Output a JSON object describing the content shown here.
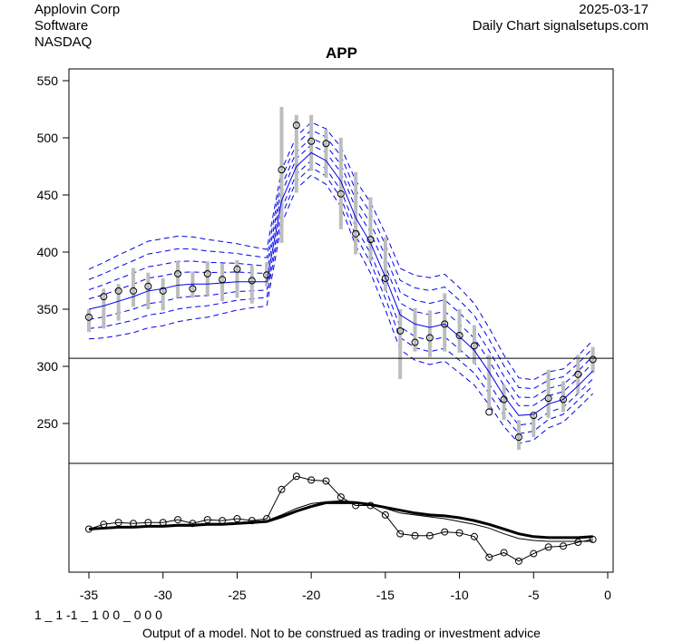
{
  "header": {
    "company": "Applovin Corp",
    "sector": "Software",
    "exchange": "NASDAQ",
    "date": "2025-03-17",
    "source": "Daily Chart signalsetups.com"
  },
  "footer": {
    "code": "1 _ 1 -1 _ 1 0 0 _ 0 0 0",
    "disclaimer": "Output of a model. Not to be construed as trading or investment advice"
  },
  "chart_data": [
    {
      "type": "line",
      "panel": "price",
      "title": "APP",
      "xlabel": "",
      "ylabel": "",
      "xlim": [
        -36.3,
        0.4
      ],
      "ylim": [
        212,
        560
      ],
      "x_ticks": [
        -35,
        -30,
        -25,
        -20,
        -15,
        -10,
        -5,
        0
      ],
      "y_ticks": [
        250,
        300,
        350,
        400,
        450,
        500,
        550
      ],
      "grid": false,
      "reference_line": 307,
      "x": [
        -35,
        -34,
        -33,
        -32,
        -31,
        -30,
        -29,
        -28,
        -27,
        -26,
        -25,
        -24,
        -23,
        -22,
        -21,
        -20,
        -19,
        -18,
        -17,
        -16,
        -15,
        -14,
        -13,
        -12,
        -11,
        -10,
        -9,
        -8,
        -7,
        -6,
        -5,
        -4,
        -3,
        -2,
        -1
      ],
      "close": [
        343,
        361,
        366,
        366,
        370,
        366,
        381,
        368,
        381,
        376,
        385,
        375,
        380,
        472,
        511,
        497,
        495,
        451,
        416,
        411,
        377,
        331,
        321,
        325,
        337,
        327,
        318,
        260,
        271,
        238,
        257,
        272,
        271,
        293,
        306
      ],
      "high": [
        350,
        368,
        372,
        386,
        382,
        377,
        392,
        383,
        392,
        390,
        393,
        388,
        391,
        527,
        520,
        520,
        507,
        500,
        470,
        448,
        413,
        350,
        351,
        349,
        364,
        350,
        336,
        310,
        284,
        253,
        258,
        297,
        287,
        310,
        317
      ],
      "low": [
        330,
        333,
        340,
        352,
        350,
        349,
        360,
        360,
        362,
        357,
        360,
        355,
        370,
        408,
        452,
        471,
        465,
        420,
        398,
        392,
        366,
        289,
        313,
        308,
        313,
        312,
        302,
        262,
        253,
        227,
        238,
        255,
        260,
        276,
        294
      ],
      "center_line": [
        350,
        353,
        357,
        361,
        366,
        368,
        371,
        372,
        372,
        373,
        374,
        374,
        374,
        445,
        475,
        487,
        480,
        462,
        430,
        408,
        378,
        345,
        337,
        334,
        337,
        326,
        314,
        295,
        274,
        257,
        258,
        267,
        271,
        283,
        296
      ],
      "band_offsets": [
        -26,
        -17,
        -9,
        9,
        17,
        26,
        35
      ],
      "series": [
        {
          "name": "Range (high-low)",
          "style": "gray vertical bars"
        },
        {
          "name": "Close",
          "style": "open circles"
        },
        {
          "name": "Center",
          "style": "solid blue line"
        },
        {
          "name": "Bands",
          "style": "dashed blue lines"
        }
      ]
    },
    {
      "type": "line",
      "panel": "indicator",
      "xlim": [
        -36.3,
        0.4
      ],
      "ylim": [
        0,
        100
      ],
      "x_ticks": [
        -35,
        -30,
        -25,
        -20,
        -15,
        -10,
        -5,
        0
      ],
      "y_ticks": [],
      "x": [
        -35,
        -34,
        -33,
        -32,
        -31,
        -30,
        -29,
        -28,
        -27,
        -26,
        -25,
        -24,
        -23,
        -22,
        -21,
        -20,
        -19,
        -18,
        -17,
        -16,
        -15,
        -14,
        -13,
        -12,
        -11,
        -10,
        -9,
        -8,
        -7,
        -6,
        -5,
        -4,
        -3,
        -2,
        -1
      ],
      "series": [
        {
          "name": "Close (normalized)",
          "style": "thin line with circles",
          "values": [
            38,
            43,
            45,
            44,
            45,
            45,
            48,
            44,
            48,
            47,
            49,
            47,
            49,
            80,
            94,
            90,
            89,
            72,
            63,
            63,
            53,
            33,
            31,
            31,
            35,
            34,
            30,
            8,
            13,
            4,
            12,
            19,
            20,
            24,
            27
          ]
        },
        {
          "name": "Slow average",
          "style": "thin line",
          "values": [
            38,
            39,
            40,
            41,
            41,
            42,
            43,
            43,
            44,
            44,
            45,
            46,
            47,
            53,
            60,
            65,
            67,
            68,
            67,
            65,
            60,
            55,
            53,
            51,
            49,
            46,
            43,
            39,
            33,
            28,
            26,
            25,
            25,
            25,
            25
          ]
        },
        {
          "name": "Slower average",
          "style": "thick line",
          "values": [
            38,
            39,
            40,
            40,
            41,
            41,
            42,
            42,
            43,
            43,
            44,
            45,
            46,
            51,
            57,
            62,
            66,
            66,
            66,
            64,
            61,
            58,
            55,
            53,
            52,
            50,
            47,
            43,
            38,
            33,
            30,
            29,
            29,
            29,
            30
          ]
        }
      ]
    }
  ]
}
